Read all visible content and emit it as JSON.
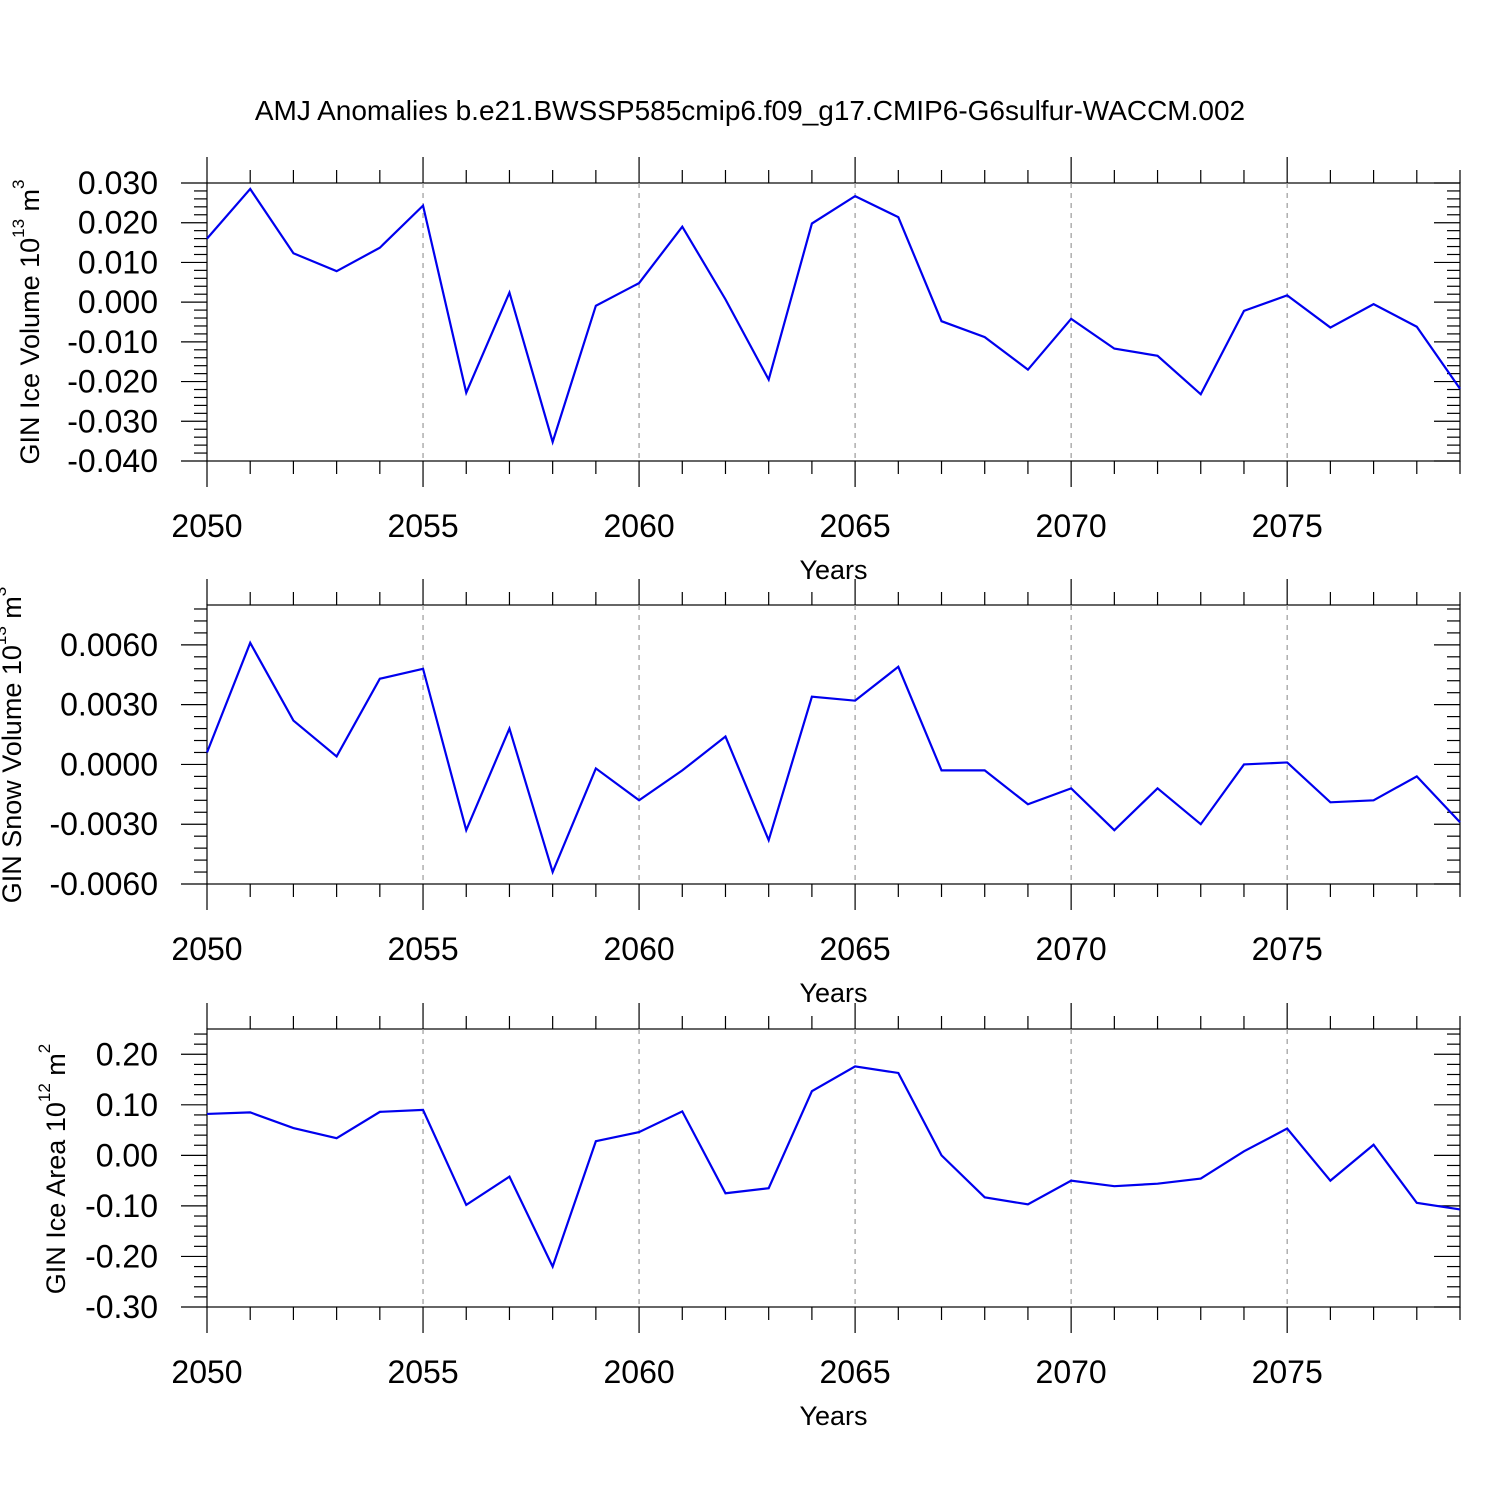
{
  "title": "AMJ Anomalies b.e21.BWSSP585cmip6.f09_g17.CMIP6-G6sulfur-WACCM.002",
  "chart_data": [
    {
      "type": "line",
      "xlabel": "Years",
      "ylabel": {
        "main": "GIN Ice Volume 10",
        "exp": "13",
        "unit": " m",
        "unit_exp": "3"
      },
      "xlim": [
        2050,
        2079
      ],
      "ylim": [
        -0.04,
        0.03
      ],
      "x_ticks": [
        2050,
        2055,
        2060,
        2065,
        2070,
        2075
      ],
      "x_tick_labels": [
        "2050",
        "2055",
        "2060",
        "2065",
        "2070",
        "2075"
      ],
      "y_ticks": [
        -0.04,
        -0.03,
        -0.02,
        -0.01,
        0.0,
        0.01,
        0.02,
        0.03
      ],
      "y_tick_labels": [
        "-0.040",
        "-0.030",
        "-0.020",
        "-0.010",
        "0.000",
        "0.010",
        "0.020",
        "0.030"
      ],
      "grid": "vertical dashed at major x ticks",
      "line_color": "#0000ee",
      "x": [
        2050,
        2051,
        2052,
        2053,
        2054,
        2055,
        2056,
        2057,
        2058,
        2059,
        2060,
        2061,
        2062,
        2063,
        2064,
        2065,
        2066,
        2067,
        2068,
        2069,
        2070,
        2071,
        2072,
        2073,
        2074,
        2075,
        2076,
        2077,
        2078,
        2079
      ],
      "values": [
        0.016,
        0.0285,
        0.0123,
        0.0078,
        0.0137,
        0.0243,
        -0.0228,
        0.0024,
        -0.0352,
        -0.0009,
        0.0048,
        0.019,
        0.0007,
        -0.0195,
        0.0198,
        0.0267,
        0.0214,
        -0.0048,
        -0.0088,
        -0.017,
        -0.0042,
        -0.0117,
        -0.0135,
        -0.0232,
        -0.0022,
        0.0017,
        -0.0064,
        -0.0005,
        -0.0062,
        -0.0218
      ]
    },
    {
      "type": "line",
      "xlabel": "Years",
      "ylabel": {
        "main": "GIN Snow Volume 10",
        "exp": "13",
        "unit": " m",
        "unit_exp": "3"
      },
      "xlim": [
        2050,
        2079
      ],
      "ylim": [
        -0.006,
        0.008
      ],
      "x_ticks": [
        2050,
        2055,
        2060,
        2065,
        2070,
        2075
      ],
      "x_tick_labels": [
        "2050",
        "2055",
        "2060",
        "2065",
        "2070",
        "2075"
      ],
      "y_ticks": [
        -0.006,
        -0.003,
        0.0,
        0.003,
        0.006
      ],
      "y_tick_labels": [
        "-0.0060",
        "-0.0030",
        "0.0000",
        "0.0030",
        "0.0060"
      ],
      "grid": "vertical dashed at major x ticks",
      "line_color": "#0000ee",
      "x": [
        2050,
        2051,
        2052,
        2053,
        2054,
        2055,
        2056,
        2057,
        2058,
        2059,
        2060,
        2061,
        2062,
        2063,
        2064,
        2065,
        2066,
        2067,
        2068,
        2069,
        2070,
        2071,
        2072,
        2073,
        2074,
        2075,
        2076,
        2077,
        2078,
        2079
      ],
      "values": [
        0.0006,
        0.0061,
        0.0022,
        0.0004,
        0.0043,
        0.0048,
        -0.0033,
        0.0018,
        -0.0054,
        -0.0002,
        -0.0018,
        -0.0003,
        0.0014,
        -0.0038,
        0.0034,
        0.0032,
        0.0049,
        -0.0003,
        -0.0003,
        -0.002,
        -0.0012,
        -0.0033,
        -0.0012,
        -0.003,
        0.0,
        0.0001,
        -0.0019,
        -0.0018,
        -0.0006,
        -0.0029
      ]
    },
    {
      "type": "line",
      "xlabel": "Years",
      "ylabel": {
        "main": "GIN Ice Area 10",
        "exp": "12",
        "unit": " m",
        "unit_exp": "2"
      },
      "xlim": [
        2050,
        2079
      ],
      "ylim": [
        -0.3,
        0.25
      ],
      "x_ticks": [
        2050,
        2055,
        2060,
        2065,
        2070,
        2075
      ],
      "x_tick_labels": [
        "2050",
        "2055",
        "2060",
        "2065",
        "2070",
        "2075"
      ],
      "y_ticks": [
        -0.3,
        -0.2,
        -0.1,
        0.0,
        0.1,
        0.2
      ],
      "y_tick_labels": [
        "-0.30",
        "-0.20",
        "-0.10",
        "0.00",
        "0.10",
        "0.20"
      ],
      "grid": "vertical dashed at major x ticks",
      "line_color": "#0000ee",
      "x": [
        2050,
        2051,
        2052,
        2053,
        2054,
        2055,
        2056,
        2057,
        2058,
        2059,
        2060,
        2061,
        2062,
        2063,
        2064,
        2065,
        2066,
        2067,
        2068,
        2069,
        2070,
        2071,
        2072,
        2073,
        2074,
        2075,
        2076,
        2077,
        2078,
        2079
      ],
      "values": [
        0.082,
        0.085,
        0.054,
        0.034,
        0.086,
        0.09,
        -0.098,
        -0.042,
        -0.22,
        0.028,
        0.046,
        0.087,
        -0.075,
        -0.065,
        0.127,
        0.176,
        0.163,
        0.0,
        -0.083,
        -0.097,
        -0.05,
        -0.061,
        -0.056,
        -0.046,
        0.008,
        0.053,
        -0.05,
        0.021,
        -0.094,
        -0.107
      ]
    }
  ]
}
